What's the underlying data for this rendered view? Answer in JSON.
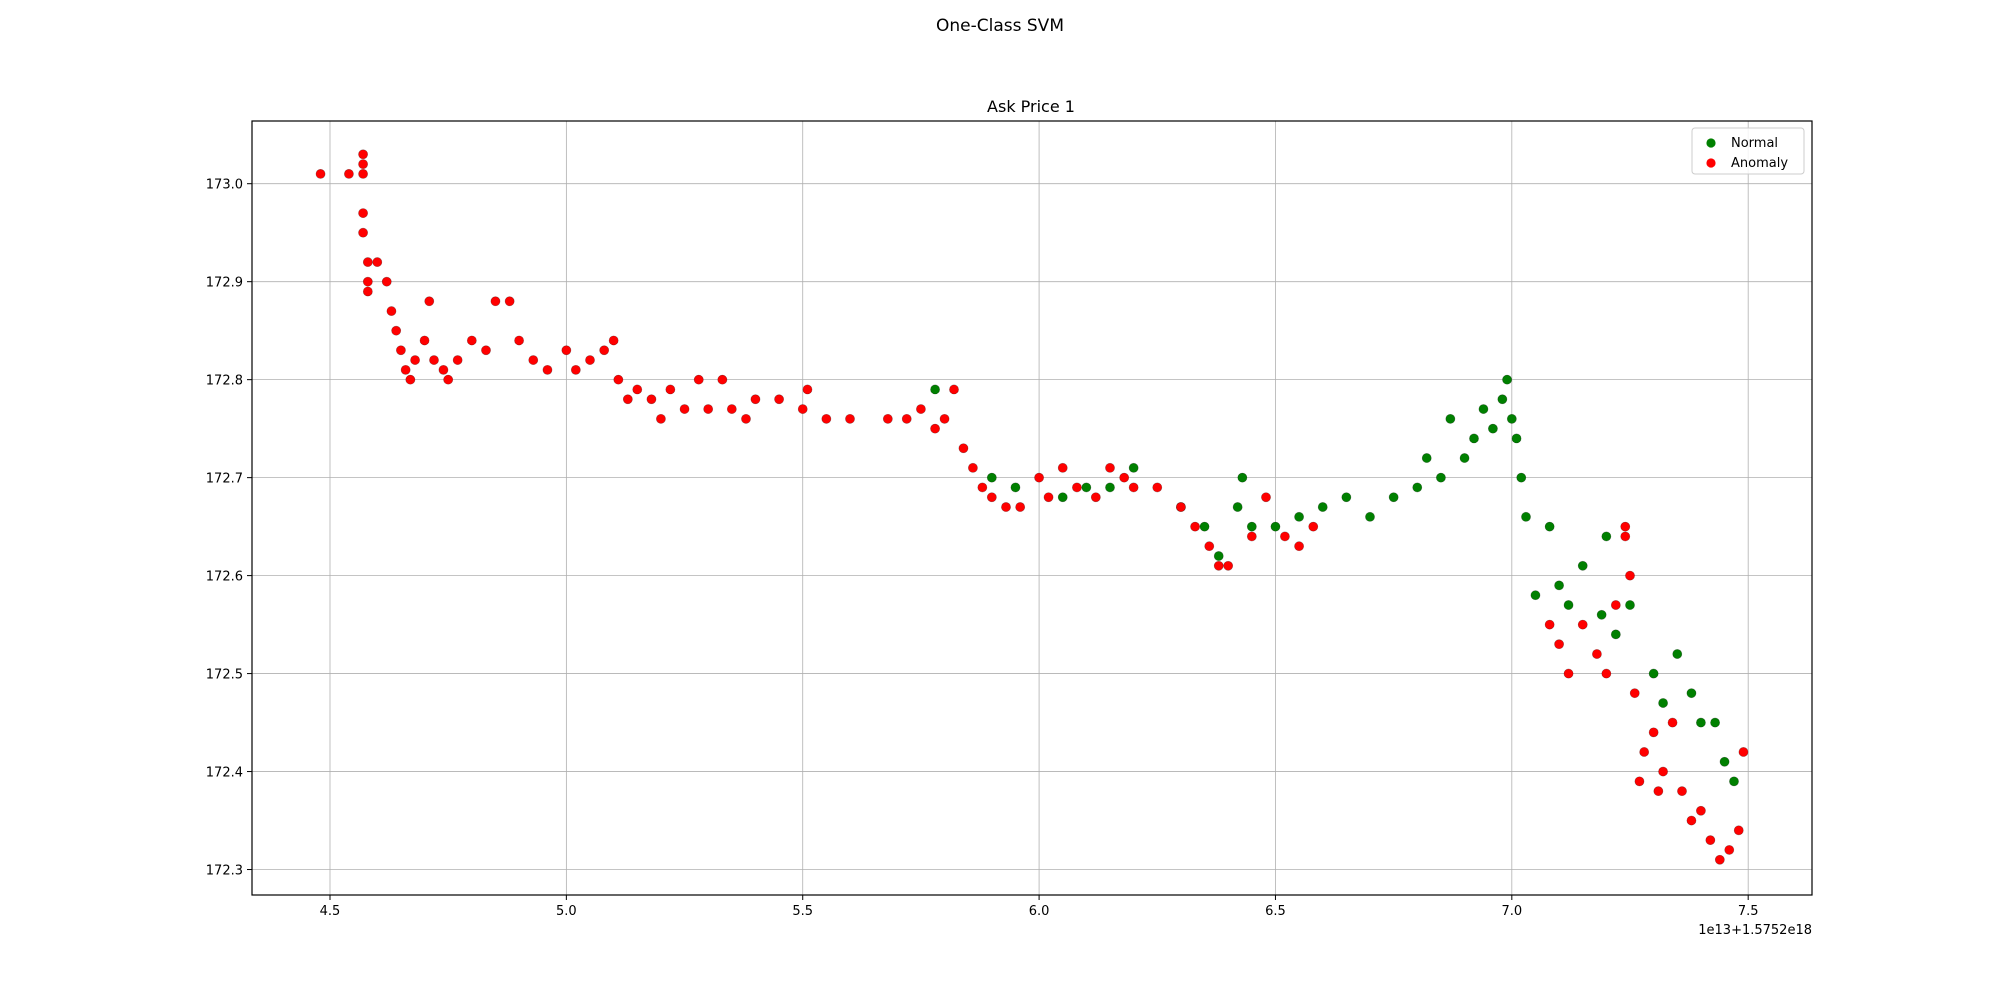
{
  "figure": {
    "suptitle": "One-Class SVM"
  },
  "chart_data": {
    "type": "scatter",
    "title": "Ask Price 1",
    "xlabel": "",
    "ylabel": "",
    "x_offset_text": "1e13+1.5752e18",
    "xlim": [
      4.335,
      7.635
    ],
    "ylim": [
      172.274,
      173.064
    ],
    "x_ticks": [
      4.5,
      5.0,
      5.5,
      6.0,
      6.5,
      7.0,
      7.5
    ],
    "x_tick_labels": [
      "4.5",
      "5.0",
      "5.5",
      "6.0",
      "6.5",
      "7.0",
      "7.5"
    ],
    "y_ticks": [
      172.3,
      172.4,
      172.5,
      172.6,
      172.7,
      172.8,
      172.9,
      173.0
    ],
    "y_tick_labels": [
      "172.3",
      "172.4",
      "172.5",
      "172.6",
      "172.7",
      "172.8",
      "172.9",
      "173.0"
    ],
    "grid": true,
    "legend_position": "top-right",
    "series": [
      {
        "name": "Normal",
        "color": "#008000",
        "points": [
          [
            6.42,
            172.67
          ],
          [
            6.43,
            172.7
          ],
          [
            6.45,
            172.65
          ],
          [
            6.5,
            172.65
          ],
          [
            6.55,
            172.66
          ],
          [
            6.6,
            172.67
          ],
          [
            6.65,
            172.68
          ],
          [
            6.7,
            172.66
          ],
          [
            6.75,
            172.68
          ],
          [
            6.8,
            172.69
          ],
          [
            6.82,
            172.72
          ],
          [
            6.85,
            172.7
          ],
          [
            6.87,
            172.76
          ],
          [
            6.9,
            172.72
          ],
          [
            6.92,
            172.74
          ],
          [
            6.94,
            172.77
          ],
          [
            6.96,
            172.75
          ],
          [
            6.98,
            172.78
          ],
          [
            6.99,
            172.8
          ],
          [
            7.0,
            172.76
          ],
          [
            7.01,
            172.74
          ],
          [
            7.02,
            172.7
          ],
          [
            7.03,
            172.66
          ],
          [
            7.05,
            172.58
          ],
          [
            7.08,
            172.65
          ],
          [
            7.1,
            172.59
          ],
          [
            7.12,
            172.57
          ],
          [
            7.15,
            172.61
          ],
          [
            7.2,
            172.64
          ],
          [
            7.25,
            172.57
          ],
          [
            7.3,
            172.5
          ],
          [
            7.32,
            172.47
          ],
          [
            7.35,
            172.52
          ],
          [
            7.38,
            172.48
          ],
          [
            7.4,
            172.45
          ],
          [
            7.43,
            172.45
          ],
          [
            7.45,
            172.41
          ],
          [
            7.47,
            172.39
          ],
          [
            7.19,
            172.56
          ],
          [
            7.22,
            172.54
          ],
          [
            6.05,
            172.68
          ],
          [
            6.1,
            172.69
          ],
          [
            6.15,
            172.69
          ],
          [
            6.2,
            172.71
          ],
          [
            6.3,
            172.67
          ],
          [
            5.78,
            172.79
          ],
          [
            5.9,
            172.7
          ],
          [
            5.95,
            172.69
          ],
          [
            6.38,
            172.62
          ],
          [
            6.35,
            172.65
          ]
        ]
      },
      {
        "name": "Anomaly",
        "color": "#ff0000",
        "points": [
          [
            4.48,
            173.01
          ],
          [
            4.54,
            173.01
          ],
          [
            4.57,
            173.03
          ],
          [
            4.57,
            173.02
          ],
          [
            4.57,
            173.01
          ],
          [
            4.57,
            172.97
          ],
          [
            4.57,
            172.95
          ],
          [
            4.58,
            172.92
          ],
          [
            4.58,
            172.9
          ],
          [
            4.58,
            172.89
          ],
          [
            4.6,
            172.92
          ],
          [
            4.62,
            172.9
          ],
          [
            4.63,
            172.87
          ],
          [
            4.64,
            172.85
          ],
          [
            4.65,
            172.83
          ],
          [
            4.66,
            172.81
          ],
          [
            4.67,
            172.8
          ],
          [
            4.68,
            172.82
          ],
          [
            4.7,
            172.84
          ],
          [
            4.71,
            172.88
          ],
          [
            4.72,
            172.82
          ],
          [
            4.74,
            172.81
          ],
          [
            4.75,
            172.8
          ],
          [
            4.77,
            172.82
          ],
          [
            4.8,
            172.84
          ],
          [
            4.83,
            172.83
          ],
          [
            4.85,
            172.88
          ],
          [
            4.88,
            172.88
          ],
          [
            4.9,
            172.84
          ],
          [
            4.93,
            172.82
          ],
          [
            4.96,
            172.81
          ],
          [
            5.0,
            172.83
          ],
          [
            5.02,
            172.81
          ],
          [
            5.05,
            172.82
          ],
          [
            5.08,
            172.83
          ],
          [
            5.1,
            172.84
          ],
          [
            5.11,
            172.8
          ],
          [
            5.13,
            172.78
          ],
          [
            5.15,
            172.79
          ],
          [
            5.18,
            172.78
          ],
          [
            5.2,
            172.76
          ],
          [
            5.22,
            172.79
          ],
          [
            5.25,
            172.77
          ],
          [
            5.28,
            172.8
          ],
          [
            5.3,
            172.77
          ],
          [
            5.33,
            172.8
          ],
          [
            5.35,
            172.77
          ],
          [
            5.38,
            172.76
          ],
          [
            5.4,
            172.78
          ],
          [
            5.45,
            172.78
          ],
          [
            5.5,
            172.77
          ],
          [
            5.51,
            172.79
          ],
          [
            5.55,
            172.76
          ],
          [
            5.6,
            172.76
          ],
          [
            5.68,
            172.76
          ],
          [
            5.72,
            172.76
          ],
          [
            5.75,
            172.77
          ],
          [
            5.78,
            172.75
          ],
          [
            5.8,
            172.76
          ],
          [
            5.82,
            172.79
          ],
          [
            5.84,
            172.73
          ],
          [
            5.86,
            172.71
          ],
          [
            5.88,
            172.69
          ],
          [
            5.9,
            172.68
          ],
          [
            5.93,
            172.67
          ],
          [
            5.96,
            172.67
          ],
          [
            6.0,
            172.7
          ],
          [
            6.02,
            172.68
          ],
          [
            6.05,
            172.71
          ],
          [
            6.08,
            172.69
          ],
          [
            6.12,
            172.68
          ],
          [
            6.15,
            172.71
          ],
          [
            6.18,
            172.7
          ],
          [
            6.2,
            172.69
          ],
          [
            6.25,
            172.69
          ],
          [
            6.3,
            172.67
          ],
          [
            6.33,
            172.65
          ],
          [
            6.36,
            172.63
          ],
          [
            6.38,
            172.61
          ],
          [
            6.4,
            172.61
          ],
          [
            6.45,
            172.64
          ],
          [
            6.48,
            172.68
          ],
          [
            6.52,
            172.64
          ],
          [
            6.55,
            172.63
          ],
          [
            6.58,
            172.65
          ],
          [
            7.08,
            172.55
          ],
          [
            7.1,
            172.53
          ],
          [
            7.12,
            172.5
          ],
          [
            7.15,
            172.55
          ],
          [
            7.18,
            172.52
          ],
          [
            7.2,
            172.5
          ],
          [
            7.22,
            172.57
          ],
          [
            7.24,
            172.64
          ],
          [
            7.24,
            172.65
          ],
          [
            7.25,
            172.6
          ],
          [
            7.26,
            172.48
          ],
          [
            7.28,
            172.42
          ],
          [
            7.3,
            172.44
          ],
          [
            7.32,
            172.4
          ],
          [
            7.34,
            172.45
          ],
          [
            7.36,
            172.38
          ],
          [
            7.38,
            172.35
          ],
          [
            7.4,
            172.36
          ],
          [
            7.42,
            172.33
          ],
          [
            7.44,
            172.31
          ],
          [
            7.46,
            172.32
          ],
          [
            7.48,
            172.34
          ],
          [
            7.49,
            172.42
          ],
          [
            7.27,
            172.39
          ],
          [
            7.31,
            172.38
          ]
        ]
      }
    ]
  }
}
